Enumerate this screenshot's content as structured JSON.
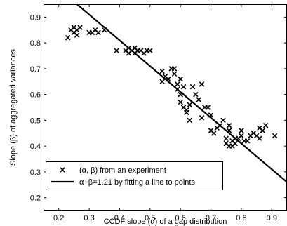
{
  "chart_data": {
    "type": "scatter",
    "xlabel": "CCDF slope (α) of a gap distribution",
    "ylabel": "Slope (β) of aggregated variances",
    "xlim": [
      0.15,
      0.95
    ],
    "ylim": [
      0.15,
      0.95
    ],
    "xticks": [
      "0.2",
      "0.3",
      "0.4",
      "0.5",
      "0.6",
      "0.7",
      "0.8",
      "0.9"
    ],
    "yticks": [
      "0.2",
      "0.3",
      "0.4",
      "0.5",
      "0.6",
      "0.7",
      "0.8",
      "0.9"
    ],
    "grid": false,
    "legend_position": "bottom-left",
    "series": [
      {
        "name": "(α, β) from an experiment",
        "marker": "x",
        "x": [
          0.23,
          0.24,
          0.25,
          0.25,
          0.26,
          0.26,
          0.27,
          0.3,
          0.31,
          0.32,
          0.33,
          0.35,
          0.39,
          0.42,
          0.43,
          0.43,
          0.44,
          0.45,
          0.45,
          0.46,
          0.47,
          0.48,
          0.49,
          0.5,
          0.54,
          0.54,
          0.55,
          0.56,
          0.57,
          0.58,
          0.58,
          0.59,
          0.59,
          0.6,
          0.6,
          0.6,
          0.61,
          0.61,
          0.62,
          0.62,
          0.63,
          0.63,
          0.64,
          0.65,
          0.66,
          0.67,
          0.67,
          0.68,
          0.69,
          0.7,
          0.7,
          0.71,
          0.72,
          0.73,
          0.74,
          0.75,
          0.75,
          0.76,
          0.76,
          0.76,
          0.77,
          0.77,
          0.78,
          0.78,
          0.79,
          0.8,
          0.8,
          0.81,
          0.82,
          0.83,
          0.84,
          0.85,
          0.86,
          0.86,
          0.87,
          0.88,
          0.91
        ],
        "y": [
          0.82,
          0.85,
          0.84,
          0.86,
          0.85,
          0.83,
          0.86,
          0.84,
          0.84,
          0.85,
          0.84,
          0.85,
          0.77,
          0.77,
          0.76,
          0.78,
          0.77,
          0.76,
          0.78,
          0.77,
          0.77,
          0.76,
          0.77,
          0.77,
          0.65,
          0.69,
          0.67,
          0.66,
          0.7,
          0.7,
          0.68,
          0.64,
          0.62,
          0.6,
          0.57,
          0.66,
          0.63,
          0.55,
          0.54,
          0.53,
          0.56,
          0.5,
          0.63,
          0.6,
          0.58,
          0.64,
          0.51,
          0.55,
          0.55,
          0.52,
          0.46,
          0.45,
          0.47,
          0.48,
          0.5,
          0.43,
          0.41,
          0.48,
          0.46,
          0.4,
          0.42,
          0.4,
          0.41,
          0.43,
          0.43,
          0.46,
          0.44,
          0.42,
          0.42,
          0.44,
          0.45,
          0.44,
          0.47,
          0.43,
          0.46,
          0.48,
          0.44
        ]
      },
      {
        "name": "α+β=1.21 by fitting a line to points",
        "line": {
          "intercept": 1.21,
          "slope": -1.0
        }
      }
    ]
  }
}
